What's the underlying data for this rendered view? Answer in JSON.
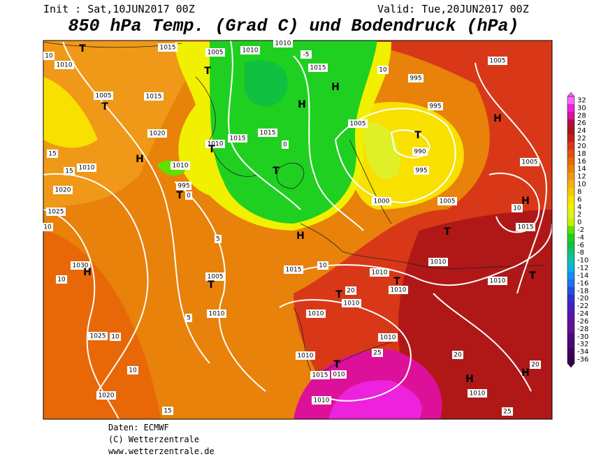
{
  "header": {
    "init": "Init : Sat,10JUN2017 00Z",
    "valid": "Valid: Tue,20JUN2017 00Z",
    "title": "850 hPa Temp. (Grad C) und Bodendruck (hPa)"
  },
  "legend": {
    "values": [
      32,
      30,
      28,
      26,
      24,
      22,
      20,
      18,
      16,
      14,
      12,
      10,
      8,
      6,
      4,
      2,
      0,
      -2,
      -4,
      -6,
      -8,
      -10,
      -12,
      -14,
      -16,
      -18,
      -20,
      -22,
      -24,
      -26,
      -28,
      -30,
      -32,
      -34,
      -36
    ],
    "colors": [
      "#ff66ff",
      "#ee22dd",
      "#dd1199",
      "#b01040",
      "#a01818",
      "#c02018",
      "#d83818",
      "#e05010",
      "#e86808",
      "#ee8008",
      "#f09818",
      "#f4b018",
      "#f8c800",
      "#f8e000",
      "#f0f000",
      "#e0f028",
      "#c8f000",
      "#60e000",
      "#20d020",
      "#10c040",
      "#10c080",
      "#10c0b0",
      "#10b0e0",
      "#1090f0",
      "#2070f0",
      "#2050e0",
      "#3030d0",
      "#4020c0",
      "#5018b0",
      "#6010a0",
      "#601090",
      "#500880",
      "#480870",
      "#400060",
      "#380050"
    ]
  },
  "map": {
    "labels": [
      "10",
      "1010",
      "T",
      "1015",
      "1005",
      "1010",
      "1010",
      "-5",
      "1015",
      "10",
      "995",
      "1005",
      "1005",
      "T",
      "1015",
      "T",
      "H",
      "H",
      "995",
      "T",
      "990",
      "H",
      "1005",
      "1010",
      "T",
      "1015",
      "1015",
      "0",
      "1020",
      "H",
      "15",
      "1010",
      "15",
      "1020",
      "1010",
      "995",
      "T",
      "T",
      "995",
      "1005",
      "1005",
      "1000",
      "H",
      "10",
      "1025",
      "10",
      "1015",
      "T",
      "H",
      "1030",
      "H",
      "10",
      "1005",
      "T",
      "1015",
      "10",
      "1010",
      "1010",
      "T",
      "1010",
      "20",
      "T",
      "1010",
      "1010",
      "T",
      "1010",
      "1010",
      "1025",
      "10",
      "1010",
      "25",
      "1010",
      "20",
      "T",
      "1015",
      "010",
      "H",
      "H",
      "20",
      "10",
      "1020",
      "1010",
      "1010",
      "15",
      "25",
      "5",
      "5",
      "0"
    ]
  },
  "footer": {
    "source": "Daten: ECMWF",
    "copyright": "(C) Wetterzentrale",
    "url": "www.wetterzentrale.de"
  }
}
